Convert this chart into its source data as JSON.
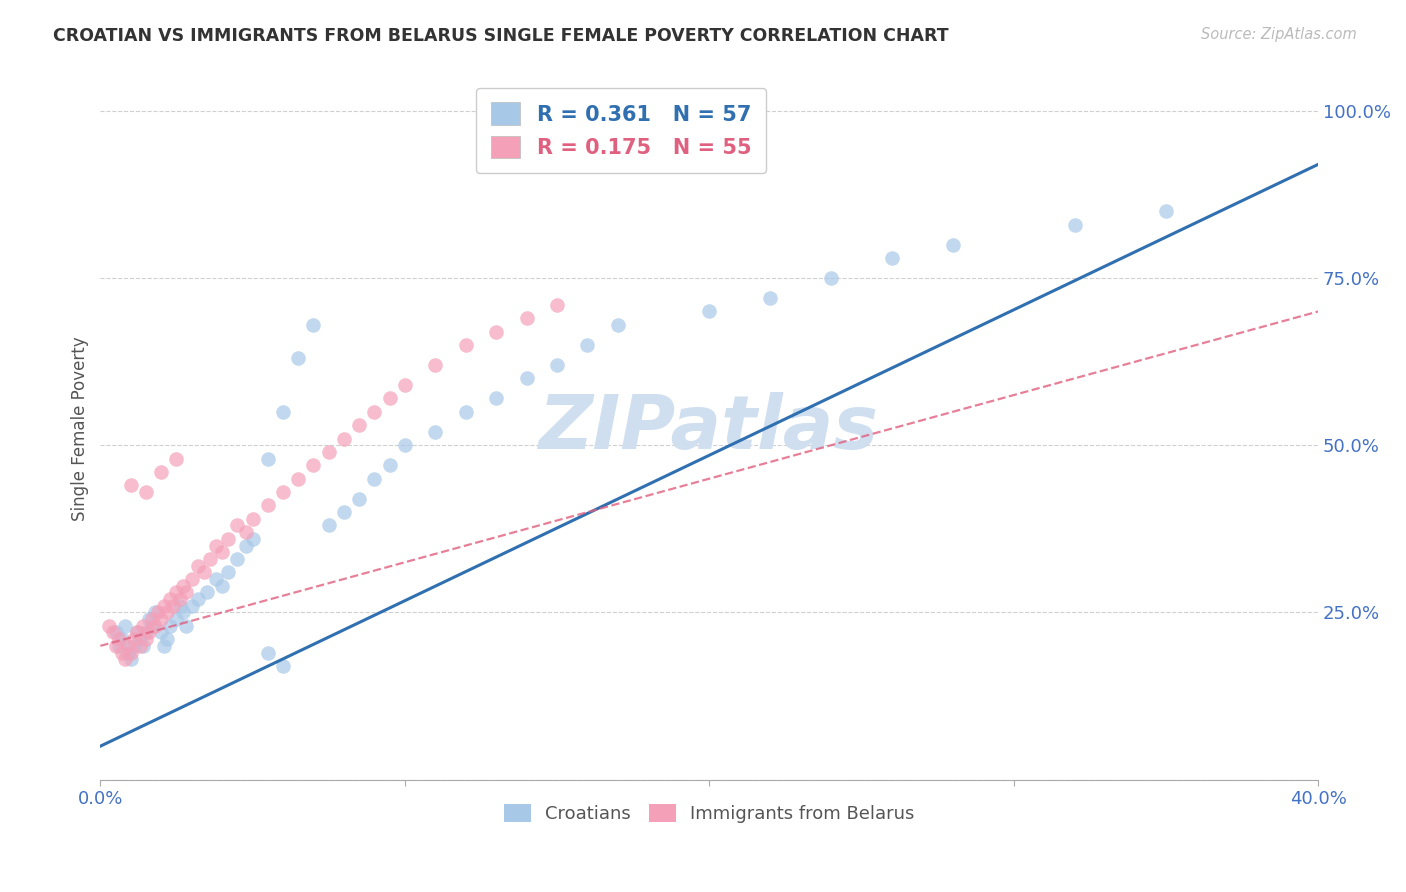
{
  "title": "CROATIAN VS IMMIGRANTS FROM BELARUS SINGLE FEMALE POVERTY CORRELATION CHART",
  "source": "Source: ZipAtlas.com",
  "ylabel": "Single Female Poverty",
  "xlim": [
    0.0,
    0.4
  ],
  "ylim": [
    0.0,
    1.05
  ],
  "yticks": [
    0.0,
    0.25,
    0.5,
    0.75,
    1.0
  ],
  "ytick_labels": [
    "",
    "25.0%",
    "50.0%",
    "75.0%",
    "100.0%"
  ],
  "xticks": [
    0.0,
    0.1,
    0.2,
    0.3,
    0.4
  ],
  "xtick_labels": [
    "0.0%",
    "",
    "",
    "",
    "40.0%"
  ],
  "croatian_R": 0.361,
  "croatian_N": 57,
  "belarus_R": 0.175,
  "belarus_N": 55,
  "blue_color": "#a8c8e8",
  "pink_color": "#f4a0b8",
  "blue_line_color": "#3070b0",
  "pink_line_color": "#e06080",
  "watermark_color": "#d0dff0",
  "title_color": "#333333",
  "axis_label_color": "#555555",
  "tick_label_color": "#4472c4",
  "grid_color": "#d0d0d0",
  "croatian_x": [
    0.005,
    0.006,
    0.007,
    0.008,
    0.009,
    0.01,
    0.011,
    0.012,
    0.013,
    0.014,
    0.015,
    0.016,
    0.017,
    0.018,
    0.02,
    0.021,
    0.022,
    0.023,
    0.025,
    0.026,
    0.027,
    0.028,
    0.03,
    0.032,
    0.035,
    0.038,
    0.04,
    0.042,
    0.045,
    0.048,
    0.05,
    0.055,
    0.06,
    0.065,
    0.07,
    0.075,
    0.08,
    0.085,
    0.09,
    0.095,
    0.1,
    0.11,
    0.12,
    0.13,
    0.14,
    0.15,
    0.16,
    0.17,
    0.2,
    0.22,
    0.24,
    0.26,
    0.28,
    0.32,
    0.35,
    0.055,
    0.06
  ],
  "croatian_y": [
    0.22,
    0.2,
    0.21,
    0.23,
    0.19,
    0.18,
    0.2,
    0.22,
    0.21,
    0.2,
    0.22,
    0.24,
    0.23,
    0.25,
    0.22,
    0.2,
    0.21,
    0.23,
    0.24,
    0.26,
    0.25,
    0.23,
    0.26,
    0.27,
    0.28,
    0.3,
    0.29,
    0.31,
    0.33,
    0.35,
    0.36,
    0.48,
    0.55,
    0.63,
    0.68,
    0.38,
    0.4,
    0.42,
    0.45,
    0.47,
    0.5,
    0.52,
    0.55,
    0.57,
    0.6,
    0.62,
    0.65,
    0.68,
    0.7,
    0.72,
    0.75,
    0.78,
    0.8,
    0.83,
    0.85,
    0.19,
    0.17
  ],
  "belarus_x": [
    0.003,
    0.004,
    0.005,
    0.006,
    0.007,
    0.008,
    0.009,
    0.01,
    0.011,
    0.012,
    0.013,
    0.014,
    0.015,
    0.016,
    0.017,
    0.018,
    0.019,
    0.02,
    0.021,
    0.022,
    0.023,
    0.024,
    0.025,
    0.026,
    0.027,
    0.028,
    0.03,
    0.032,
    0.034,
    0.036,
    0.038,
    0.04,
    0.042,
    0.045,
    0.048,
    0.05,
    0.055,
    0.06,
    0.065,
    0.07,
    0.075,
    0.08,
    0.085,
    0.09,
    0.095,
    0.1,
    0.11,
    0.12,
    0.13,
    0.14,
    0.15,
    0.02,
    0.025,
    0.01,
    0.015
  ],
  "belarus_y": [
    0.23,
    0.22,
    0.2,
    0.21,
    0.19,
    0.18,
    0.2,
    0.19,
    0.21,
    0.22,
    0.2,
    0.23,
    0.21,
    0.22,
    0.24,
    0.23,
    0.25,
    0.24,
    0.26,
    0.25,
    0.27,
    0.26,
    0.28,
    0.27,
    0.29,
    0.28,
    0.3,
    0.32,
    0.31,
    0.33,
    0.35,
    0.34,
    0.36,
    0.38,
    0.37,
    0.39,
    0.41,
    0.43,
    0.45,
    0.47,
    0.49,
    0.51,
    0.53,
    0.55,
    0.57,
    0.59,
    0.62,
    0.65,
    0.67,
    0.69,
    0.71,
    0.46,
    0.48,
    0.44,
    0.43
  ]
}
